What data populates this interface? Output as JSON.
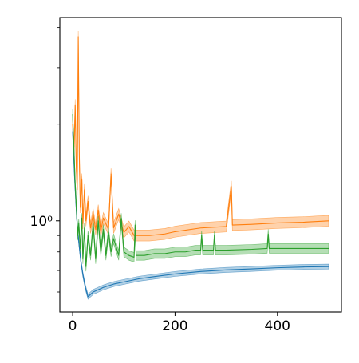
{
  "chart_data": {
    "type": "line",
    "title": "",
    "xlabel": "",
    "ylabel": "",
    "xlim": [
      -25,
      525
    ],
    "ylim": [
      0.52,
      4.3
    ],
    "yscale": "log",
    "grid": false,
    "legend": "none",
    "x_ticks": [
      {
        "value": 0,
        "label": "0"
      },
      {
        "value": 200,
        "label": "200"
      },
      {
        "value": 400,
        "label": "400"
      }
    ],
    "y_ticks": [
      {
        "value": 1,
        "label": "10⁰"
      }
    ],
    "series": [
      {
        "color": "#1f77b4",
        "band_width": 0.018,
        "points": [
          [
            0,
            1.9
          ],
          [
            4,
            1.35
          ],
          [
            8,
            1.02
          ],
          [
            12,
            0.86
          ],
          [
            16,
            0.75
          ],
          [
            20,
            0.68
          ],
          [
            25,
            0.62
          ],
          [
            30,
            0.58
          ],
          [
            35,
            0.59
          ],
          [
            40,
            0.6
          ],
          [
            50,
            0.61
          ],
          [
            60,
            0.62
          ],
          [
            80,
            0.635
          ],
          [
            100,
            0.645
          ],
          [
            130,
            0.66
          ],
          [
            160,
            0.67
          ],
          [
            200,
            0.683
          ],
          [
            250,
            0.695
          ],
          [
            300,
            0.703
          ],
          [
            350,
            0.708
          ],
          [
            400,
            0.714
          ],
          [
            450,
            0.718
          ],
          [
            500,
            0.72
          ]
        ]
      },
      {
        "color": "#ff7f0e",
        "band_width": 0.04,
        "points": [
          [
            0,
            2.0
          ],
          [
            3,
            1.7
          ],
          [
            5,
            2.3
          ],
          [
            7,
            1.5
          ],
          [
            9,
            1.25
          ],
          [
            11,
            3.75
          ],
          [
            13,
            1.6
          ],
          [
            15,
            1.1
          ],
          [
            18,
            1.35
          ],
          [
            20,
            0.98
          ],
          [
            23,
            1.25
          ],
          [
            26,
            1.0
          ],
          [
            30,
            1.15
          ],
          [
            35,
            0.95
          ],
          [
            40,
            1.05
          ],
          [
            45,
            0.94
          ],
          [
            50,
            1.08
          ],
          [
            55,
            0.93
          ],
          [
            60,
            1.02
          ],
          [
            70,
            0.94
          ],
          [
            75,
            1.4
          ],
          [
            80,
            0.95
          ],
          [
            90,
            1.05
          ],
          [
            100,
            0.92
          ],
          [
            110,
            0.96
          ],
          [
            120,
            0.9
          ],
          [
            130,
            0.9
          ],
          [
            150,
            0.9
          ],
          [
            180,
            0.91
          ],
          [
            200,
            0.925
          ],
          [
            250,
            0.95
          ],
          [
            300,
            0.96
          ],
          [
            310,
            1.28
          ],
          [
            312,
            0.97
          ],
          [
            350,
            0.975
          ],
          [
            400,
            0.985
          ],
          [
            450,
            0.99
          ],
          [
            500,
            1.0
          ]
        ]
      },
      {
        "color": "#2ca02c",
        "band_width": 0.035,
        "points": [
          [
            0,
            2.15
          ],
          [
            3,
            1.6
          ],
          [
            5,
            1.3
          ],
          [
            8,
            1.05
          ],
          [
            10,
            0.9
          ],
          [
            12,
            0.98
          ],
          [
            15,
            0.82
          ],
          [
            18,
            1.02
          ],
          [
            20,
            0.76
          ],
          [
            23,
            0.95
          ],
          [
            26,
            0.72
          ],
          [
            30,
            0.9
          ],
          [
            35,
            0.78
          ],
          [
            40,
            0.98
          ],
          [
            45,
            0.76
          ],
          [
            50,
            1.0
          ],
          [
            55,
            0.8
          ],
          [
            60,
            0.94
          ],
          [
            65,
            0.78
          ],
          [
            70,
            0.92
          ],
          [
            75,
            0.8
          ],
          [
            80,
            0.88
          ],
          [
            90,
            0.78
          ],
          [
            95,
            1.02
          ],
          [
            100,
            0.8
          ],
          [
            110,
            0.78
          ],
          [
            120,
            0.77
          ],
          [
            122,
            0.97
          ],
          [
            124,
            0.78
          ],
          [
            140,
            0.78
          ],
          [
            160,
            0.79
          ],
          [
            180,
            0.79
          ],
          [
            200,
            0.8
          ],
          [
            220,
            0.8
          ],
          [
            240,
            0.81
          ],
          [
            250,
            0.81
          ],
          [
            252,
            0.9
          ],
          [
            254,
            0.81
          ],
          [
            275,
            0.81
          ],
          [
            277,
            0.9
          ],
          [
            279,
            0.81
          ],
          [
            300,
            0.81
          ],
          [
            350,
            0.815
          ],
          [
            380,
            0.82
          ],
          [
            382,
            0.91
          ],
          [
            384,
            0.82
          ],
          [
            400,
            0.82
          ],
          [
            450,
            0.82
          ],
          [
            500,
            0.82
          ]
        ]
      }
    ]
  }
}
